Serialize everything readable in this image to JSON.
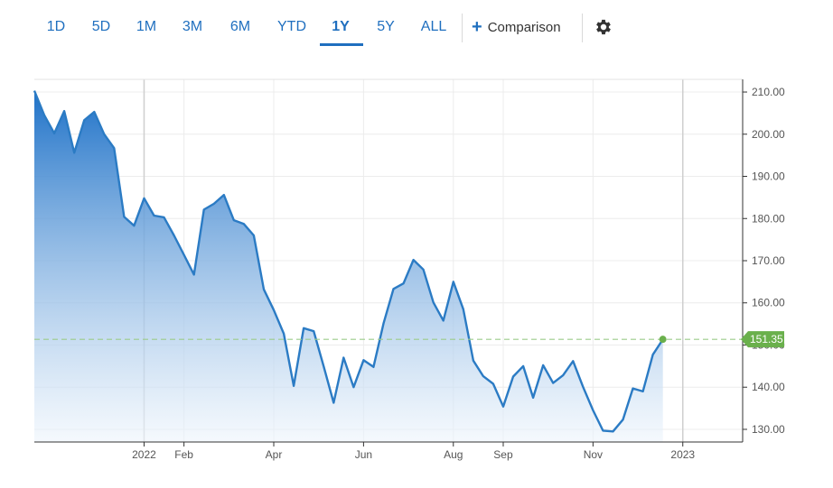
{
  "toolbar": {
    "ranges": [
      "1D",
      "5D",
      "1M",
      "3M",
      "6M",
      "YTD",
      "1Y",
      "5Y",
      "ALL"
    ],
    "active_range": "1Y",
    "comparison_label": "Comparison",
    "settings_icon": "gear-icon"
  },
  "colors": {
    "line": "#2b7bc4",
    "fill_top": "#1f72c8",
    "fill_bottom": "#eef5fc",
    "last_price_badge": "#6ab04c",
    "last_price_line": "#9ccc8a",
    "accent": "#1f6fbf"
  },
  "chart_data": {
    "type": "area",
    "ylim": [
      127,
      213
    ],
    "y_ticks": [
      "210.00",
      "200.00",
      "190.00",
      "180.00",
      "170.00",
      "160.00",
      "150.00",
      "140.00",
      "130.00"
    ],
    "y_tick_values": [
      210,
      200,
      190,
      180,
      170,
      160,
      150,
      140,
      130
    ],
    "x_ticks": [
      "2022",
      "Feb",
      "Apr",
      "Jun",
      "Aug",
      "Sep",
      "Nov",
      "2023"
    ],
    "x_tick_pos": [
      11,
      15,
      24,
      33,
      42,
      47,
      56,
      65
    ],
    "x_max": 71,
    "values": [
      210.3,
      204.5,
      200.2,
      205.5,
      195.6,
      203.3,
      205.3,
      200.0,
      196.7,
      180.4,
      178.3,
      184.8,
      180.7,
      180.3,
      176.0,
      171.4,
      166.7,
      182.1,
      183.5,
      185.6,
      179.6,
      178.7,
      176.0,
      163.2,
      158.3,
      152.7,
      140.3,
      154.0,
      153.3,
      145.0,
      136.3,
      147.0,
      140.0,
      146.4,
      144.8,
      155.1,
      163.3,
      164.6,
      170.2,
      167.9,
      160.1,
      155.8,
      165.0,
      158.5,
      146.3,
      142.6,
      140.8,
      135.4,
      142.5,
      145.0,
      137.5,
      145.2,
      141.0,
      142.8,
      146.2,
      140.1,
      134.5,
      129.7,
      129.5,
      132.3,
      139.7,
      139.0,
      147.7,
      151.35
    ],
    "last_value": "151.35",
    "last_value_num": 151.35,
    "grid": true
  }
}
